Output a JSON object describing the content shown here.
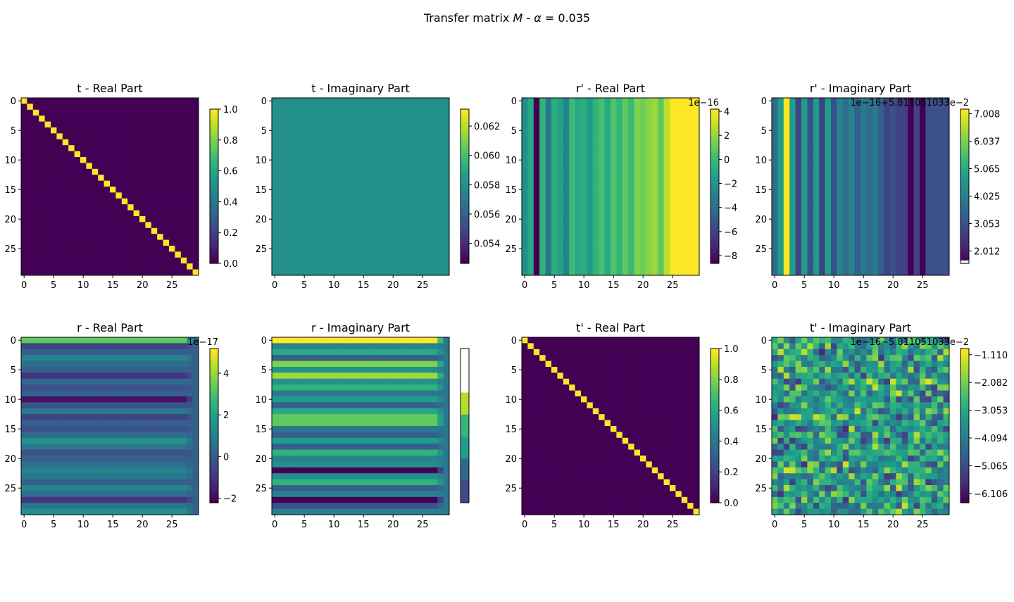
{
  "figure": {
    "title_prefix": "Transfer matrix ",
    "title_symbol": "M",
    "title_mid": " - ",
    "title_alpha": "α",
    "title_suffix": " = 0.035"
  },
  "colormap": [
    "#440154",
    "#482878",
    "#3e4989",
    "#31688e",
    "#26828e",
    "#1f9e89",
    "#35b779",
    "#6ece58",
    "#b5de2b",
    "#fde725"
  ],
  "chart_data": [
    {
      "type": "heatmap",
      "title": "t - Real Part",
      "matrix_size": 30,
      "x_ticks": [
        0,
        5,
        10,
        15,
        20,
        25
      ],
      "y_ticks": [
        0,
        5,
        10,
        15,
        20,
        25
      ],
      "pattern": "identity",
      "vmin": 0.0,
      "vmax": 1.0,
      "colorbar_ticks": [
        "0.0",
        "0.2",
        "0.4",
        "0.6",
        "0.8",
        "1.0"
      ],
      "colorbar_offset": ""
    },
    {
      "type": "heatmap",
      "title": "t - Imaginary Part",
      "matrix_size": 30,
      "x_ticks": [
        0,
        5,
        10,
        15,
        20,
        25
      ],
      "y_ticks": [
        0,
        5,
        10,
        15,
        20,
        25
      ],
      "pattern": "constant",
      "constant_level": 0.5,
      "colorbar_ticks": [
        "0.054",
        "0.056",
        "0.058",
        "0.060",
        "0.062"
      ],
      "colorbar_offset": ""
    },
    {
      "type": "heatmap",
      "title": "r' - Real Part",
      "matrix_size": 30,
      "x_ticks": [
        0,
        5,
        10,
        15,
        20,
        25
      ],
      "y_ticks": [
        0,
        5,
        10,
        15,
        20,
        25
      ],
      "pattern": "columns",
      "column_levels": [
        0.5,
        0.6,
        0.0,
        0.65,
        0.4,
        0.62,
        0.58,
        0.45,
        0.68,
        0.6,
        0.62,
        0.55,
        0.65,
        0.7,
        0.6,
        0.72,
        0.65,
        0.75,
        0.68,
        0.8,
        0.78,
        0.82,
        0.85,
        0.75,
        0.9,
        1.0,
        1.0,
        1.0,
        1.0,
        1.0
      ],
      "colorbar_ticks": [
        "−8",
        "−6",
        "−4",
        "−2",
        "0",
        "2",
        "4"
      ],
      "colorbar_offset": "1e−16"
    },
    {
      "type": "heatmap",
      "title": "r' - Imaginary Part",
      "matrix_size": 30,
      "x_ticks": [
        0,
        5,
        10,
        15,
        20,
        25
      ],
      "y_ticks": [
        0,
        5,
        10,
        15,
        20,
        25
      ],
      "pattern": "columns",
      "column_levels": [
        0.35,
        0.55,
        1.0,
        0.55,
        0.2,
        0.55,
        0.25,
        0.55,
        0.2,
        0.55,
        0.25,
        0.45,
        0.35,
        0.45,
        0.3,
        0.4,
        0.35,
        0.4,
        0.3,
        0.2,
        0.25,
        0.2,
        0.2,
        0.0,
        0.2,
        0.0,
        0.25,
        0.25,
        0.25,
        0.25
      ],
      "colorbar_ticks": [
        "2.012",
        "3.053",
        "4.025",
        "5.065",
        "6.037",
        "7.008"
      ],
      "colorbar_offset": "1e−16+5.811051033e−2"
    },
    {
      "type": "heatmap",
      "title": "r - Real Part",
      "matrix_size": 30,
      "x_ticks": [
        0,
        5,
        10,
        15,
        20,
        25
      ],
      "y_ticks": [
        0,
        5,
        10,
        15,
        20,
        25
      ],
      "pattern": "rows",
      "row_levels": [
        0.75,
        0.2,
        0.3,
        0.45,
        0.35,
        0.3,
        0.15,
        0.35,
        0.25,
        0.3,
        0.05,
        0.25,
        0.4,
        0.2,
        0.3,
        0.25,
        0.35,
        0.5,
        0.4,
        0.25,
        0.3,
        0.35,
        0.45,
        0.4,
        0.3,
        0.45,
        0.35,
        0.15,
        0.4,
        0.5
      ],
      "last_column_level": 0.3,
      "colorbar_ticks": [
        "−2",
        "0",
        "2",
        "4"
      ],
      "colorbar_offset": "1e−17"
    },
    {
      "type": "heatmap",
      "title": "r - Imaginary Part",
      "matrix_size": 30,
      "x_ticks": [
        0,
        5,
        10,
        15,
        20,
        25
      ],
      "y_ticks": [
        0,
        5,
        10,
        15,
        20,
        25
      ],
      "pattern": "rows",
      "row_levels": [
        1.0,
        0.45,
        0.6,
        0.3,
        0.8,
        0.5,
        0.85,
        0.5,
        0.65,
        0.4,
        0.55,
        0.3,
        0.6,
        0.75,
        0.75,
        0.4,
        0.3,
        0.55,
        0.3,
        0.65,
        0.45,
        0.5,
        0.0,
        0.5,
        0.65,
        0.3,
        0.45,
        0.0,
        0.25,
        0.45
      ],
      "last_column_level": 0.4,
      "colorbar_ticks": [],
      "colorbar_offset": ""
    },
    {
      "type": "heatmap",
      "title": "t' - Real Part",
      "matrix_size": 30,
      "x_ticks": [
        0,
        5,
        10,
        15,
        20,
        25
      ],
      "y_ticks": [
        0,
        5,
        10,
        15,
        20,
        25
      ],
      "pattern": "identity",
      "vmin": 0.0,
      "vmax": 1.0,
      "colorbar_ticks": [
        "0.0",
        "0.2",
        "0.4",
        "0.6",
        "0.8",
        "1.0"
      ],
      "colorbar_offset": ""
    },
    {
      "type": "heatmap",
      "title": "t' - Imaginary Part",
      "matrix_size": 30,
      "x_ticks": [
        0,
        5,
        10,
        15,
        20,
        25
      ],
      "y_ticks": [
        0,
        5,
        10,
        15,
        20,
        25
      ],
      "pattern": "random",
      "seed": 7,
      "colorbar_ticks": [
        "−6.106",
        "−5.065",
        "−4.094",
        "−3.053",
        "−2.082",
        "−1.110"
      ],
      "colorbar_offset": "1e−16−5.811051033e−2"
    }
  ]
}
